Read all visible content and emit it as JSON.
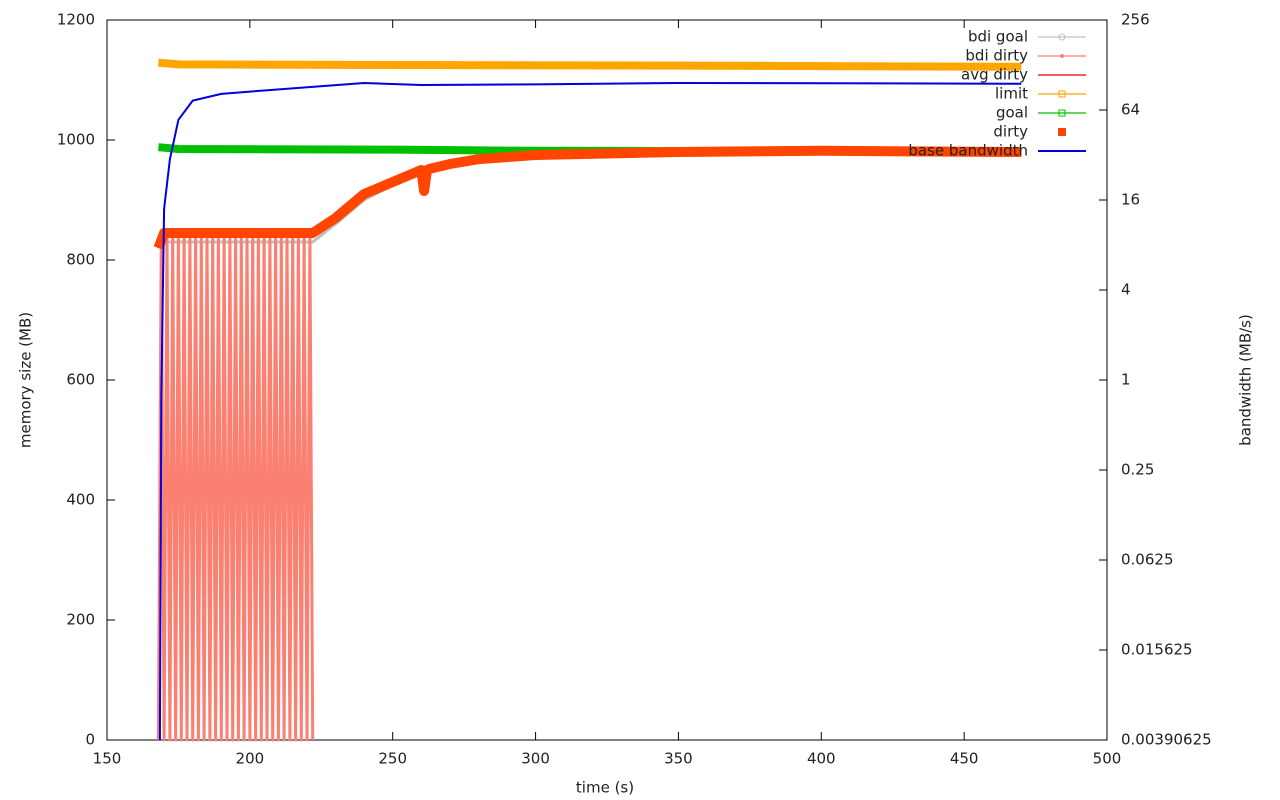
{
  "chart_data": {
    "type": "line",
    "xlabel": "time (s)",
    "ylabel": "memory size (MB)",
    "y2label": "bandwidth (MB/s)",
    "xlim": [
      150,
      500
    ],
    "xticks": [
      150,
      200,
      250,
      300,
      350,
      400,
      450,
      500
    ],
    "ylim": [
      0,
      1200
    ],
    "yticks": [
      0,
      200,
      400,
      600,
      800,
      1000,
      1200
    ],
    "y2lim": [
      0.00390625,
      256
    ],
    "y2ticks": [
      0.00390625,
      0.015625,
      0.0625,
      0.25,
      1,
      4,
      16,
      64,
      256
    ],
    "y2log": true,
    "legend": "top-right",
    "series": [
      {
        "name": "bdi goal",
        "color": "#c0c0c0",
        "x": [
          168,
          222,
          230,
          240,
          250,
          260,
          270,
          280,
          300,
          350,
          400,
          470
        ],
        "values": [
          830,
          830,
          860,
          900,
          925,
          945,
          958,
          966,
          974,
          979,
          981,
          979
        ]
      },
      {
        "name": "bdi dirty",
        "color": "#fa8072",
        "x": [
          168,
          169,
          170,
          171,
          172,
          173,
          174,
          175,
          176,
          177,
          178,
          179,
          180,
          181,
          182,
          183,
          184,
          185,
          186,
          187,
          188,
          189,
          190,
          191,
          192,
          193,
          194,
          195,
          196,
          197,
          198,
          199,
          200,
          201,
          202,
          203,
          204,
          205,
          206,
          207,
          208,
          209,
          210,
          211,
          212,
          213,
          214,
          215,
          216,
          217,
          218,
          219,
          220,
          221,
          222
        ],
        "values": [
          0,
          845,
          0,
          845,
          0,
          845,
          0,
          845,
          0,
          845,
          0,
          845,
          0,
          845,
          0,
          845,
          0,
          845,
          0,
          845,
          0,
          845,
          0,
          845,
          0,
          845,
          0,
          845,
          0,
          845,
          0,
          845,
          0,
          845,
          0,
          845,
          0,
          845,
          0,
          845,
          0,
          845,
          0,
          845,
          0,
          845,
          0,
          845,
          0,
          845,
          0,
          845,
          0,
          845,
          0
        ]
      },
      {
        "name": "avg dirty",
        "color": "#e00000",
        "x": [
          168,
          170,
          222,
          230,
          240,
          250,
          260,
          270,
          280,
          300,
          350,
          400,
          470
        ],
        "values": [
          820,
          845,
          845,
          870,
          910,
          930,
          950,
          960,
          968,
          975,
          980,
          982,
          980
        ]
      },
      {
        "name": "limit",
        "color": "#ffa500",
        "x": [
          168,
          175,
          250,
          350,
          470
        ],
        "values": [
          1129,
          1126,
          1125,
          1124,
          1122
        ]
      },
      {
        "name": "goal",
        "color": "#00c000",
        "x": [
          168,
          175,
          250,
          300,
          470
        ],
        "values": [
          988,
          985,
          984,
          982,
          980
        ]
      },
      {
        "name": "dirty",
        "color": "#ff4500",
        "x": [
          168,
          170,
          222,
          230,
          240,
          250,
          260,
          261,
          262,
          263,
          270,
          280,
          300,
          350,
          400,
          470
        ],
        "values": [
          820,
          845,
          845,
          870,
          910,
          930,
          950,
          915,
          950,
          952,
          960,
          968,
          975,
          980,
          982,
          980
        ]
      },
      {
        "name": "base bandwidth",
        "color": "#0000e0",
        "axis": "y2",
        "x": [
          168.5,
          169,
          170,
          172,
          175,
          180,
          190,
          200,
          240,
          260,
          300,
          350,
          470
        ],
        "values": [
          0.00390625,
          0.76,
          14,
          30,
          55,
          74,
          82,
          85,
          97,
          94,
          95,
          97,
          96
        ]
      }
    ]
  }
}
